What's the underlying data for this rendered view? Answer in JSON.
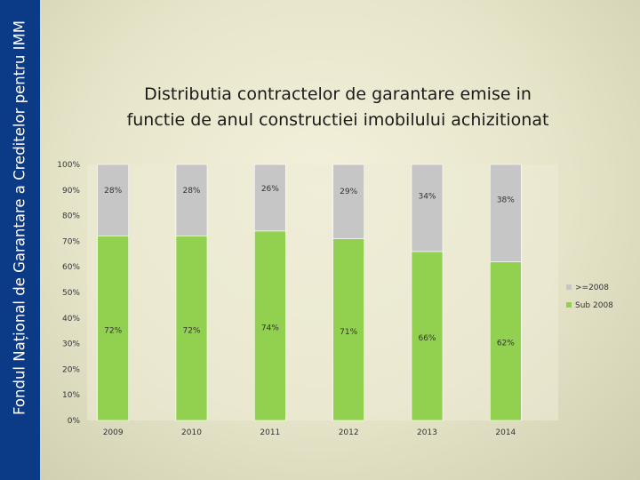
{
  "sidebar": {
    "text": "Fondul Național de Garantare a Creditelor pentru IMM"
  },
  "colors": {
    "sidebar_bg": "#0b3a86",
    "series_top": "#c6c6c6",
    "series_bottom": "#92d050"
  },
  "chart_data": {
    "type": "bar",
    "stacked": true,
    "title_line1": "Distributia contractelor de garantare emise in",
    "title_line2": "functie de anul constructiei imobilului achizitionat",
    "categories": [
      "2009",
      "2010",
      "2011",
      "2012",
      "2013",
      "2014"
    ],
    "series": [
      {
        "name": "Sub 2008",
        "values": [
          72,
          72,
          74,
          71,
          66,
          62
        ],
        "labels": [
          "72%",
          "72%",
          "74%",
          "71%",
          "66%",
          "62%"
        ]
      },
      {
        "name": ">=2008",
        "values": [
          28,
          28,
          26,
          29,
          34,
          38
        ],
        "labels": [
          "28%",
          "28%",
          "26%",
          "29%",
          "34%",
          "38%"
        ]
      }
    ],
    "y_ticks": [
      "0%",
      "10%",
      "20%",
      "30%",
      "40%",
      "50%",
      "60%",
      "70%",
      "80%",
      "90%",
      "100%"
    ],
    "ylim": [
      0,
      100
    ],
    "legend": [
      ">=2008",
      "Sub 2008"
    ],
    "legend_position": "right"
  }
}
